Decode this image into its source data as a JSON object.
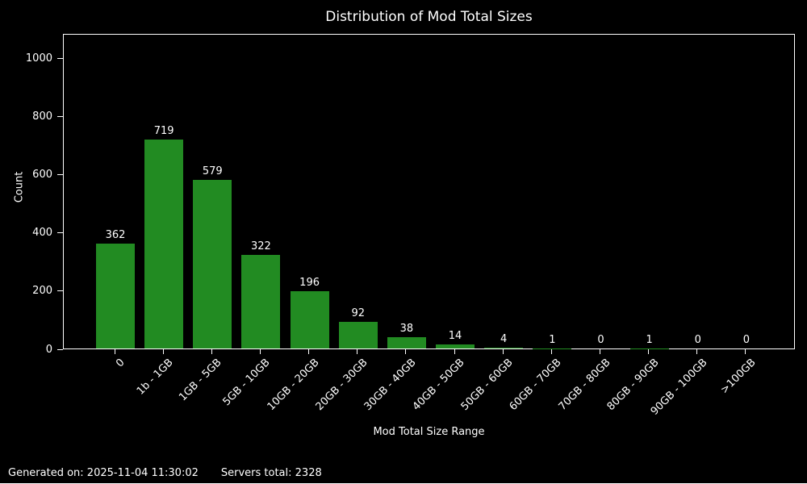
{
  "chart_data": {
    "type": "bar",
    "title": "Distribution of Mod Total Sizes",
    "xlabel": "Mod Total Size Range",
    "ylabel": "Count",
    "categories": [
      "0",
      "1b - 1GB",
      "1GB - 5GB",
      "5GB - 10GB",
      "10GB - 20GB",
      "20GB - 30GB",
      "30GB - 40GB",
      "40GB - 50GB",
      "50GB - 60GB",
      "60GB - 70GB",
      "70GB - 80GB",
      "80GB - 90GB",
      "90GB - 100GB",
      ">100GB"
    ],
    "values": [
      362,
      719,
      579,
      322,
      196,
      92,
      38,
      14,
      4,
      1,
      0,
      1,
      0,
      0
    ],
    "yticks": [
      0,
      200,
      400,
      600,
      800,
      1000
    ],
    "ylim": [
      0,
      1085
    ],
    "bar_color": "#228B22",
    "background_color": "#000000",
    "text_color": "#ffffff",
    "grid": false,
    "legend_position": "none",
    "value_labels_shown": true
  },
  "footer": {
    "generated_label": "Generated on: 2025-11-04 11:30:02",
    "servers_total_label": "Servers total: 2328"
  }
}
